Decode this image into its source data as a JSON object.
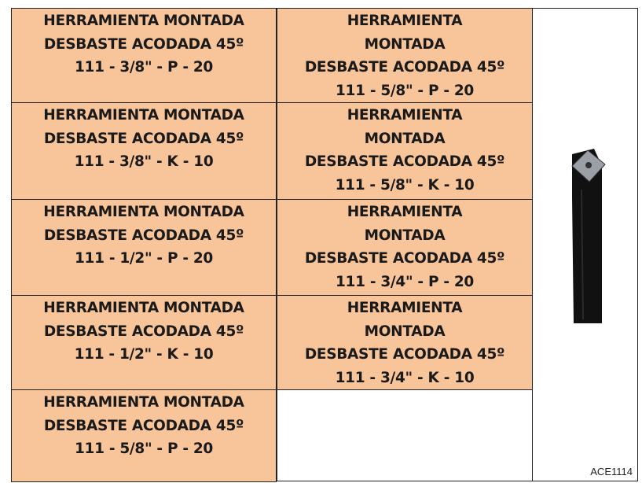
{
  "table": {
    "rows": [
      [
        [
          "HERRAMIENTA MONTADA",
          "DESBASTE ACODADA 45º",
          "111 - 3/8\" - P - 20"
        ],
        [
          "HERRAMIENTA",
          "MONTADA",
          "DESBASTE ACODADA 45º",
          "111 - 5/8\" - P - 20"
        ]
      ],
      [
        [
          "HERRAMIENTA MONTADA",
          "DESBASTE ACODADA 45º",
          "111 - 3/8\" - K - 10"
        ],
        [
          "HERRAMIENTA",
          "MONTADA",
          "DESBASTE ACODADA 45º",
          "111 - 5/8\" - K - 10"
        ]
      ],
      [
        [
          "HERRAMIENTA MONTADA",
          "DESBASTE ACODADA 45º",
          "111 - 1/2\" - P - 20"
        ],
        [
          "HERRAMIENTA",
          "MONTADA",
          "DESBASTE ACODADA 45º",
          "111 - 3/4\" - P - 20"
        ]
      ],
      [
        [
          "HERRAMIENTA MONTADA",
          "DESBASTE ACODADA 45º",
          "111 - 1/2\" - K - 10"
        ],
        [
          "HERRAMIENTA",
          "MONTADA",
          "DESBASTE ACODADA 45º",
          "111 - 3/4\" - K - 10"
        ]
      ],
      [
        [
          "HERRAMIENTA MONTADA",
          "DESBASTE ACODADA 45º",
          "111 - 5/8\" - P - 20"
        ]
      ]
    ],
    "image_label": "ACE1114"
  }
}
